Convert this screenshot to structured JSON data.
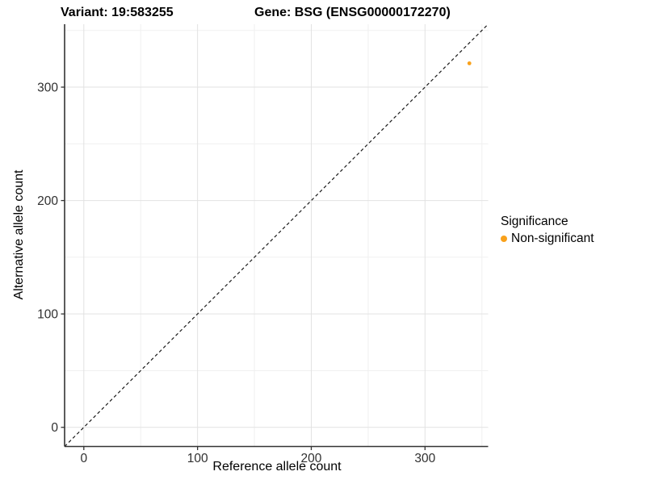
{
  "header": {
    "variant_title": "Variant: 19:583255",
    "gene_title": "Gene: BSG (ENSG00000172270)"
  },
  "chart_data": {
    "type": "scatter",
    "title": "Variant: 19:583255  Gene: BSG (ENSG00000172270)",
    "xlabel": "Reference allele count",
    "ylabel": "Alternative allele count",
    "xlim": [
      -16.9,
      355.5
    ],
    "ylim": [
      -16.9,
      355.5
    ],
    "x_ticks": [
      0,
      100,
      200,
      300
    ],
    "y_ticks": [
      0,
      100,
      200,
      300
    ],
    "x_minor_ticks": [
      50,
      150,
      250,
      350
    ],
    "y_minor_ticks": [
      50,
      150,
      250,
      350
    ],
    "grid": true,
    "identity_line": {
      "style": "dashed",
      "slope": 1,
      "intercept": 0
    },
    "series": [
      {
        "name": "Non-significant",
        "color": "#F9A11B",
        "points": [
          {
            "x": 339,
            "y": 321
          }
        ]
      }
    ],
    "legend": {
      "title": "Significance",
      "position": "right",
      "items": [
        {
          "label": "Non-significant",
          "color": "#F9A11B"
        }
      ]
    }
  },
  "colors": {
    "background": "#FFFFFF",
    "grid_major": "#E2E2E2",
    "grid_minor": "#F0F0F0",
    "axis_line": "#333333",
    "tick_text": "#303030",
    "title_text": "#000000"
  }
}
